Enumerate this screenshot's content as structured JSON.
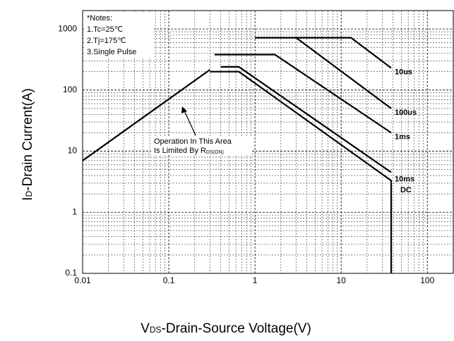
{
  "chart_data": {
    "type": "line",
    "xlog": true,
    "ylog": true,
    "grid": true,
    "xlim": [
      0.01,
      200
    ],
    "ylim": [
      0.1,
      2000
    ],
    "xticks": [
      0.01,
      0.1,
      1,
      10,
      100
    ],
    "yticks": [
      0.1,
      1,
      10,
      100,
      1000
    ],
    "xminorticks": [
      0.02,
      0.03,
      0.04,
      0.05,
      0.06,
      0.07,
      0.08,
      0.09,
      0.2,
      0.3,
      0.4,
      0.5,
      0.6,
      0.7,
      0.8,
      0.9,
      2,
      3,
      4,
      5,
      6,
      7,
      8,
      9,
      20,
      30,
      40,
      50,
      60,
      70,
      80,
      90,
      200
    ],
    "yminorticks": [
      0.2,
      0.3,
      0.4,
      0.5,
      0.6,
      0.7,
      0.8,
      0.9,
      2,
      3,
      4,
      5,
      6,
      7,
      8,
      9,
      20,
      30,
      40,
      50,
      60,
      70,
      80,
      90,
      200,
      300,
      400,
      500,
      600,
      700,
      800,
      900
    ],
    "xlabel": {
      "main": "V",
      "sub": "DS",
      "rest": "-Drain-Source Voltage(V)"
    },
    "ylabel": {
      "main": "I",
      "sub": "D",
      "rest": "-Drain Current(A)"
    },
    "notes": [
      "*Notes:",
      "1.Tc=25℃",
      "2.Tj=175℃",
      "3.Single Pulse"
    ],
    "annotation": {
      "line1": "Operation In This Area",
      "line2": "Is Limited By R",
      "sub": "DS(ON)"
    },
    "color": "#000000",
    "rds_limit": {
      "x": [
        0.01,
        0.3
      ],
      "values": [
        7,
        215
      ]
    },
    "series": [
      {
        "name": "10us",
        "x": [
          1,
          13,
          38
        ],
        "values": [
          720,
          720,
          230
        ]
      },
      {
        "name": "100us",
        "x": [
          3,
          38
        ],
        "values": [
          720,
          50
        ]
      },
      {
        "name": "1ms",
        "x": [
          0.34,
          1.7,
          38
        ],
        "values": [
          380,
          380,
          20
        ]
      },
      {
        "name": "10ms",
        "x": [
          0.4,
          0.65,
          38
        ],
        "values": [
          240,
          240,
          4.5
        ]
      },
      {
        "name": "DC",
        "x": [
          0.3,
          0.65,
          38,
          38
        ],
        "values": [
          200,
          200,
          3.3,
          0.1
        ]
      }
    ]
  }
}
